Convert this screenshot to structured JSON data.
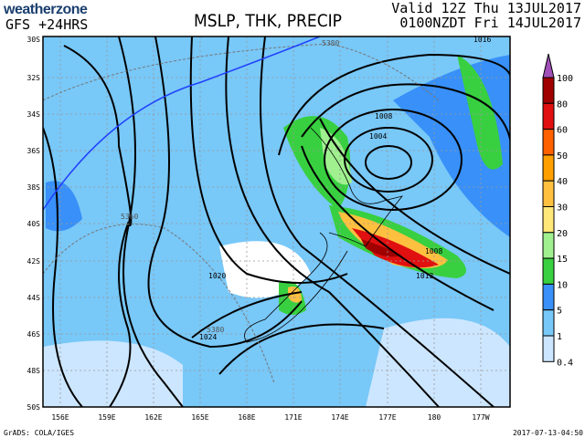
{
  "header": {
    "brand": "weatherzone",
    "model_run": "GFS +24HRS",
    "title": "MSLP, THK, PRECIP",
    "valid_utc": "Valid 12Z Thu 13JUL2017",
    "valid_local": "0100NZDT Fri 14JUL2017"
  },
  "map": {
    "lat_labels": [
      "30S",
      "32S",
      "34S",
      "36S",
      "38S",
      "40S",
      "42S",
      "44S",
      "46S",
      "48S",
      "50S"
    ],
    "lon_labels": [
      "156E",
      "159E",
      "162E",
      "165E",
      "168E",
      "171E",
      "174E",
      "177E",
      "180",
      "177W"
    ],
    "isobar_labels": [
      "1008",
      "1004",
      "1008",
      "1012",
      "1020",
      "1024",
      "1016"
    ],
    "thickness_labels": [
      "5380",
      "5360",
      "5380"
    ]
  },
  "legend": {
    "levels": [
      "100",
      "80",
      "60",
      "50",
      "40",
      "30",
      "20",
      "15",
      "10",
      "5",
      "1",
      "0.4"
    ],
    "colors": [
      "#a050b8",
      "#a00000",
      "#e01010",
      "#ff6000",
      "#ffa000",
      "#ffc040",
      "#ffe878",
      "#a0f090",
      "#38d040",
      "#3890f8",
      "#78c8f8",
      "#cce6ff"
    ]
  },
  "footer": {
    "credit": "GrADS: COLA/IGES",
    "timestamp": "2017-07-13-04:50"
  }
}
